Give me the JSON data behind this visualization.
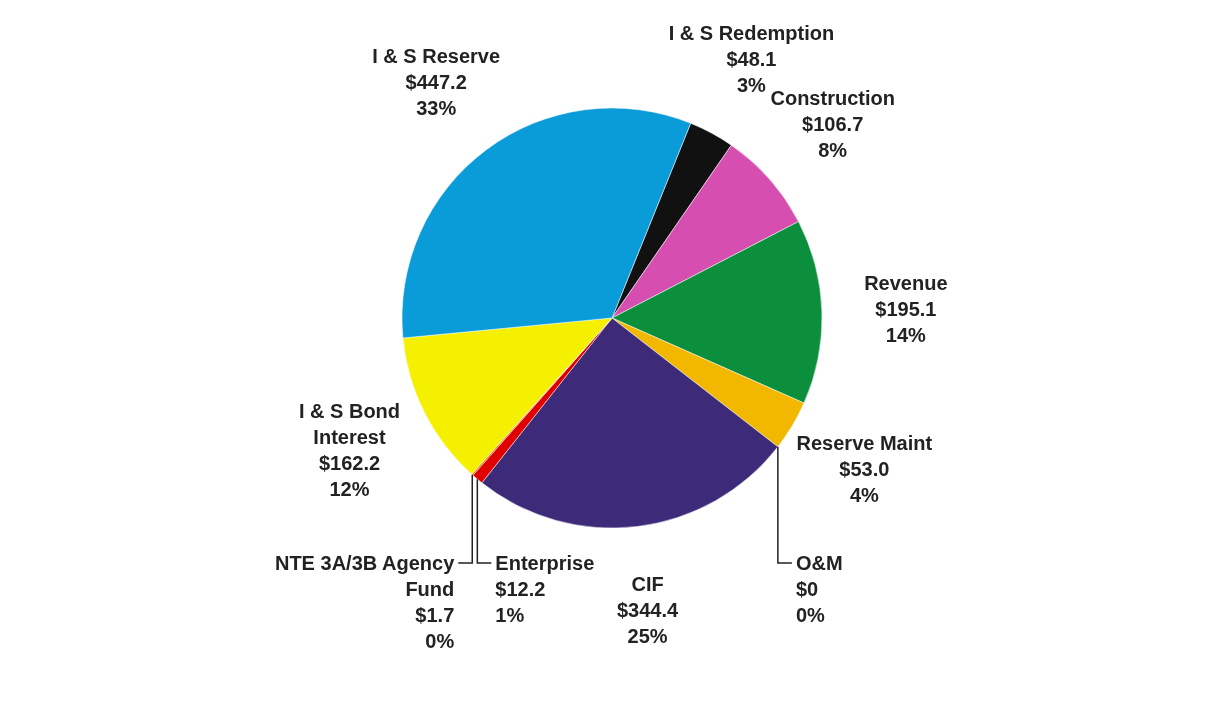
{
  "chart_data": {
    "type": "pie",
    "categories": [
      "I & S Redemption",
      "Construction",
      "Revenue",
      "Reserve Maint",
      "O&M",
      "CIF",
      "Enterprise",
      "NTE 3A/3B Agency Fund",
      "I & S Bond Interest",
      "I & S Reserve"
    ],
    "values": [
      48.1,
      106.7,
      195.1,
      53.0,
      0,
      344.4,
      12.2,
      1.7,
      162.2,
      447.2
    ],
    "value_labels": [
      "$48.1\n3%",
      "$106.7\n8%",
      "$195.1\n14%",
      "$53.0\n4%",
      "$0\n0%",
      "$344.4\n25%",
      "$12.2\n1%",
      "$1.7\n0%",
      "$162.2\n12%",
      "$447.2\n33%"
    ],
    "colors": [
      "#111111",
      "#d64fb0",
      "#0b8f3c",
      "#f2b800",
      "#8b5a2b",
      "#3d2b7a",
      "#e00000",
      "#ff6600",
      "#f5f000",
      "#0a9bd9"
    ]
  }
}
